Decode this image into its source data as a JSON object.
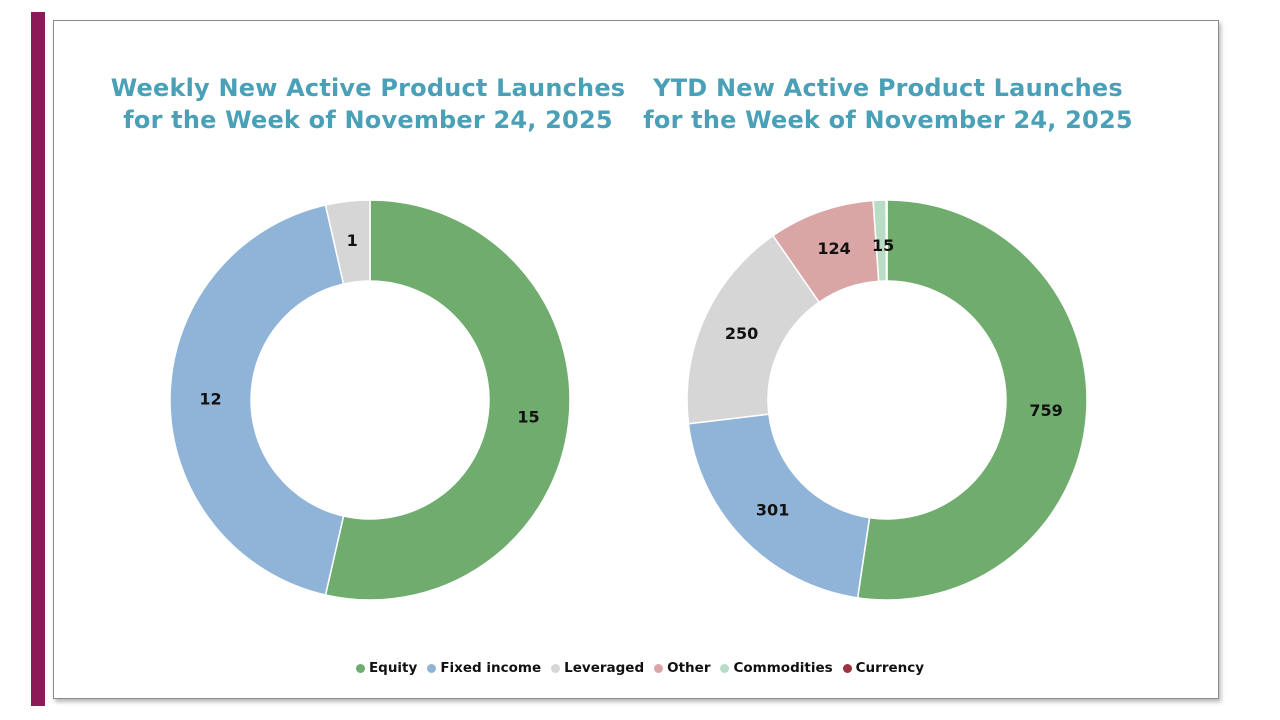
{
  "chart_data": [
    {
      "type": "pie",
      "variant": "donut",
      "title_lines": [
        "Weekly New Active Product Launches",
        "for the Week of November 24, 2025"
      ],
      "categories": [
        "Equity",
        "Fixed income",
        "Leveraged"
      ],
      "values": [
        15,
        12,
        1
      ],
      "labels": [
        "15",
        "12",
        "1"
      ],
      "colors": [
        "#6fac6d",
        "#8fb4d8",
        "#d6d6d6"
      ]
    },
    {
      "type": "pie",
      "variant": "donut",
      "title_lines": [
        "YTD New Active Product Launches",
        "for the Week of November 24, 2025"
      ],
      "categories": [
        "Equity",
        "Fixed income",
        "Leveraged",
        "Other",
        "Commodities",
        "Currency"
      ],
      "values": [
        759,
        301,
        250,
        124,
        15,
        1
      ],
      "labels": [
        "759",
        "301",
        "250",
        "124",
        "15",
        ""
      ],
      "colors": [
        "#6fac6d",
        "#8fb4d8",
        "#d6d6d6",
        "#d9a5a5",
        "#b9dcc5",
        "#9b3340"
      ]
    }
  ],
  "legend": [
    {
      "label": "Equity",
      "color": "#6fac6d"
    },
    {
      "label": "Fixed income",
      "color": "#8fb4d8"
    },
    {
      "label": "Leveraged",
      "color": "#d6d6d6"
    },
    {
      "label": "Other",
      "color": "#d9a5a5"
    },
    {
      "label": "Commodities",
      "color": "#b9dcc5"
    },
    {
      "label": "Currency",
      "color": "#9b3340"
    }
  ],
  "colors": {
    "accent_bar": "#8b1a56",
    "title": "#4aa0b7"
  }
}
